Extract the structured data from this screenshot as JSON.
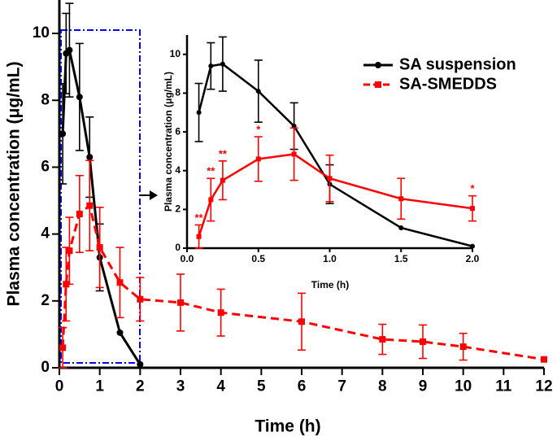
{
  "chart_data": [
    {
      "type": "line",
      "x_label": "Time (h)",
      "y_label": "Plasma concentration (μg/mL)",
      "xlim": [
        0,
        12
      ],
      "ylim": [
        0,
        11
      ],
      "xticks": [
        0,
        1,
        2,
        3,
        4,
        5,
        6,
        7,
        8,
        9,
        10,
        11,
        12
      ],
      "yticks": [
        0,
        2,
        4,
        6,
        8,
        10
      ],
      "grid": false,
      "legend": "upper right",
      "series": [
        {
          "name": "SA suspension",
          "color": "#000000",
          "marker": "circle",
          "line_style": "solid",
          "x": [
            0.083,
            0.167,
            0.25,
            0.5,
            0.75,
            1,
            1.5,
            2
          ],
          "values": [
            7.0,
            9.4,
            9.5,
            8.1,
            6.3,
            3.3,
            1.05,
            0.1
          ],
          "errors": [
            1.5,
            1.2,
            1.4,
            1.6,
            1.2,
            1.0,
            null,
            null
          ]
        },
        {
          "name": "SA-SMEDDS",
          "color": "#ff0000",
          "marker": "square",
          "line_style": "dashed",
          "x": [
            0.083,
            0.167,
            0.25,
            0.5,
            0.75,
            1,
            1.5,
            2,
            3,
            4,
            6,
            8,
            9,
            10,
            12
          ],
          "values": [
            0.6,
            2.5,
            3.5,
            4.6,
            4.85,
            3.6,
            2.55,
            2.05,
            1.95,
            1.65,
            1.38,
            0.85,
            0.78,
            0.63,
            0.25
          ],
          "errors": [
            0.6,
            1.1,
            1.0,
            1.15,
            1.35,
            1.2,
            1.05,
            0.65,
            0.85,
            0.7,
            0.85,
            0.45,
            0.5,
            0.4,
            null
          ]
        }
      ]
    },
    {
      "type": "line",
      "x_label": "Time (h)",
      "y_label": "Plasma concentration (μg/mL)",
      "xlim": [
        0,
        2
      ],
      "ylim": [
        0,
        11
      ],
      "xticks": [
        {
          "value": 0,
          "label": "0.0"
        },
        {
          "value": 0.5,
          "label": "0.5"
        },
        {
          "value": 1,
          "label": "1.0"
        },
        {
          "value": 1.5,
          "label": "1.5"
        },
        {
          "value": 2,
          "label": "2.0"
        }
      ],
      "yticks": [
        0,
        2,
        4,
        6,
        8,
        10
      ],
      "grid": false,
      "series": [
        {
          "color": "#000000",
          "marker": "circle",
          "line_style": "solid",
          "x": [
            0.083,
            0.167,
            0.25,
            0.5,
            0.75,
            1,
            1.5,
            2
          ],
          "values": [
            7.0,
            9.4,
            9.5,
            8.1,
            6.3,
            3.3,
            1.05,
            0.1
          ],
          "errors": [
            1.5,
            1.2,
            1.4,
            1.6,
            1.2,
            1.0,
            null,
            null
          ]
        },
        {
          "color": "#ff0000",
          "marker": "square",
          "line_style": "solid",
          "x": [
            0.083,
            0.167,
            0.25,
            0.5,
            0.75,
            1,
            1.5,
            2
          ],
          "values": [
            0.6,
            2.5,
            3.5,
            4.6,
            4.85,
            3.6,
            2.55,
            2.05
          ],
          "errors": [
            0.6,
            1.1,
            1.0,
            1.15,
            1.35,
            1.2,
            1.05,
            0.65
          ],
          "significance": [
            "**",
            "**",
            "**",
            "*",
            null,
            null,
            null,
            "*"
          ]
        }
      ]
    }
  ]
}
